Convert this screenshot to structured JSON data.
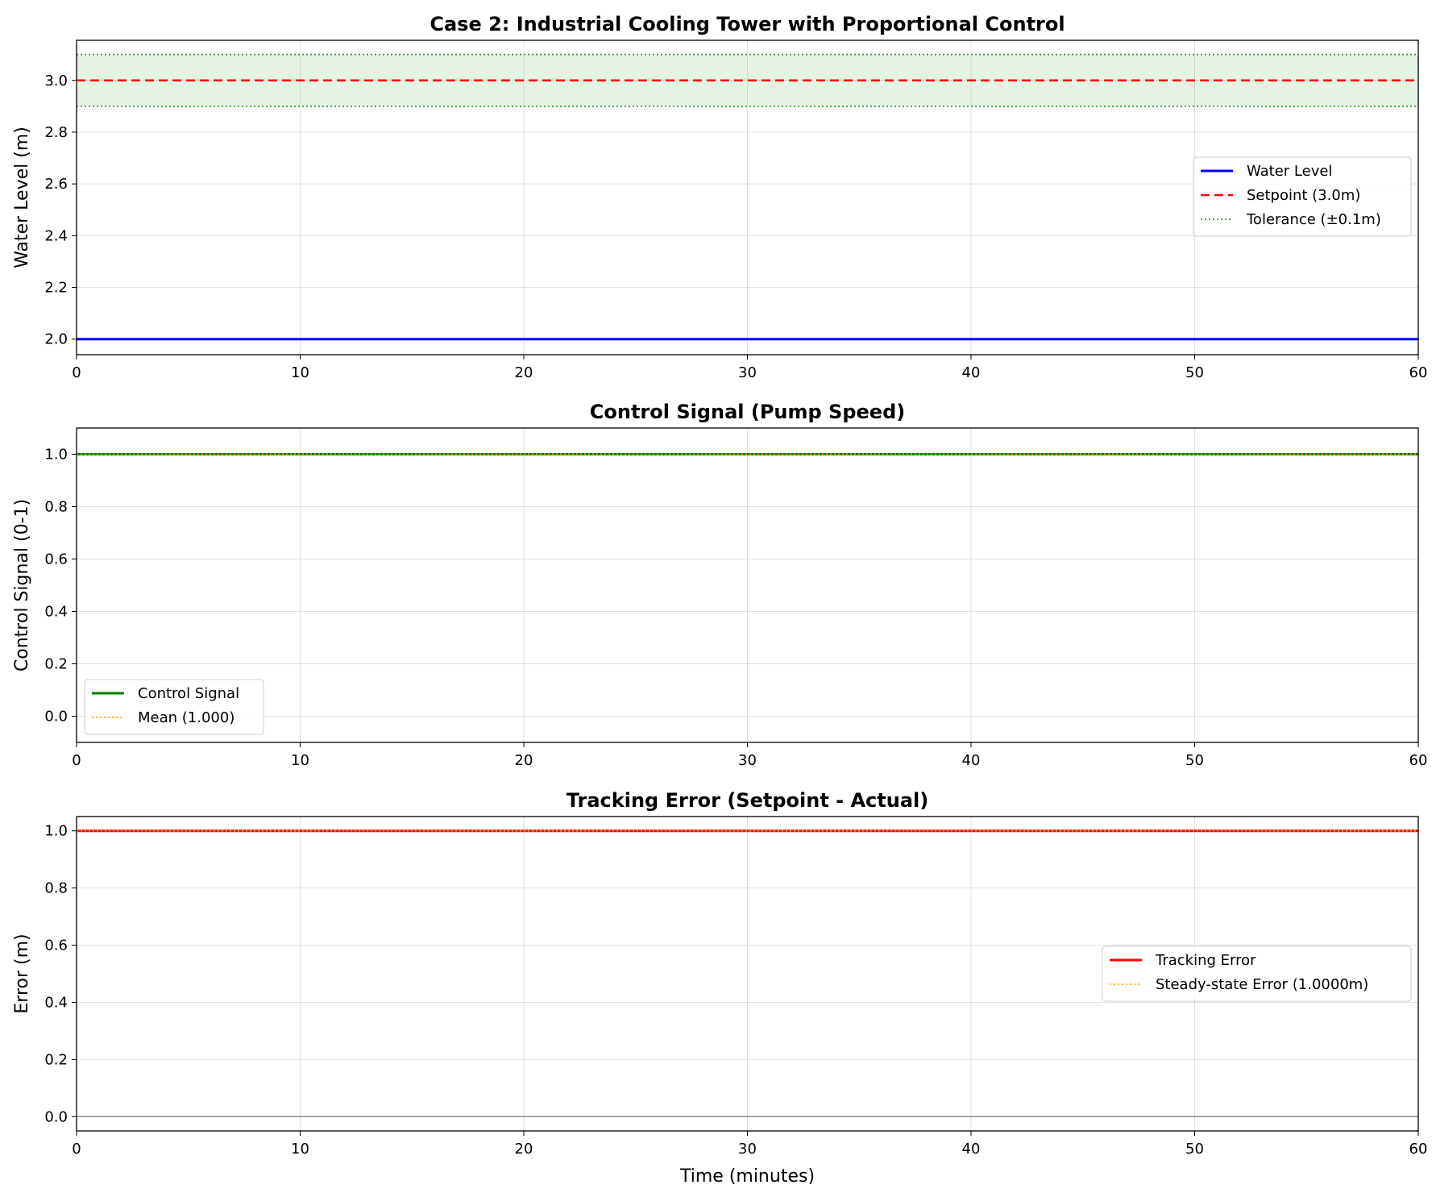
{
  "chart_data": [
    {
      "type": "line",
      "title": "Case 2: Industrial Cooling Tower with Proportional Control",
      "xlabel": "",
      "ylabel": "Water Level (m)",
      "xlim": [
        0,
        60
      ],
      "ylim": [
        1.94,
        3.155
      ],
      "xticks": [
        "0",
        "10",
        "20",
        "30",
        "40",
        "50",
        "60"
      ],
      "yticks": [
        "2.0",
        "2.2",
        "2.4",
        "2.6",
        "2.8",
        "3.0"
      ],
      "grid": true,
      "legend_position": "center-right",
      "tolerance_band": [
        2.9,
        3.1
      ],
      "series": [
        {
          "name": "Water Level",
          "color": "#0000ff",
          "style": "solid",
          "x": [
            0,
            60
          ],
          "y": [
            2.0,
            2.0
          ]
        },
        {
          "name": "Setpoint (3.0m)",
          "color": "#ff0000",
          "style": "dashed",
          "x": [
            0,
            60
          ],
          "y": [
            3.0,
            3.0
          ]
        },
        {
          "name": "Tolerance (±0.1m)",
          "color": "#2ca02c",
          "style": "dotted",
          "x": [
            0,
            60
          ],
          "y": [
            3.1,
            3.1
          ]
        },
        {
          "name": "",
          "color": "#2ca02c",
          "style": "dotted",
          "x": [
            0,
            60
          ],
          "y": [
            2.9,
            2.9
          ]
        }
      ]
    },
    {
      "type": "line",
      "title": "Control Signal (Pump Speed)",
      "xlabel": "",
      "ylabel": "Control Signal (0-1)",
      "xlim": [
        0,
        60
      ],
      "ylim": [
        -0.1,
        1.1
      ],
      "xticks": [
        "0",
        "10",
        "20",
        "30",
        "40",
        "50",
        "60"
      ],
      "yticks": [
        "0.0",
        "0.2",
        "0.4",
        "0.6",
        "0.8",
        "1.0"
      ],
      "grid": true,
      "legend_position": "lower-left",
      "series": [
        {
          "name": "Control Signal",
          "color": "#008000",
          "style": "solid",
          "x": [
            0,
            60
          ],
          "y": [
            1.0,
            1.0
          ]
        },
        {
          "name": "Mean (1.000)",
          "color": "#ffa500",
          "style": "dotted",
          "x": [
            0,
            60
          ],
          "y": [
            1.0,
            1.0
          ]
        }
      ]
    },
    {
      "type": "line",
      "title": "Tracking Error (Setpoint - Actual)",
      "xlabel": "Time (minutes)",
      "ylabel": "Error (m)",
      "xlim": [
        0,
        60
      ],
      "ylim": [
        -0.05,
        1.05
      ],
      "xticks": [
        "0",
        "10",
        "20",
        "30",
        "40",
        "50",
        "60"
      ],
      "yticks": [
        "0.0",
        "0.2",
        "0.4",
        "0.6",
        "0.8",
        "1.0"
      ],
      "grid": true,
      "legend_position": "center-right",
      "zero_line": 0.0,
      "series": [
        {
          "name": "Tracking Error",
          "color": "#ff0000",
          "style": "solid",
          "x": [
            0,
            60
          ],
          "y": [
            1.0,
            1.0
          ]
        },
        {
          "name": "Steady-state Error (1.0000m)",
          "color": "#ffa500",
          "style": "dotted",
          "x": [
            0,
            60
          ],
          "y": [
            1.0,
            1.0
          ]
        }
      ]
    }
  ]
}
